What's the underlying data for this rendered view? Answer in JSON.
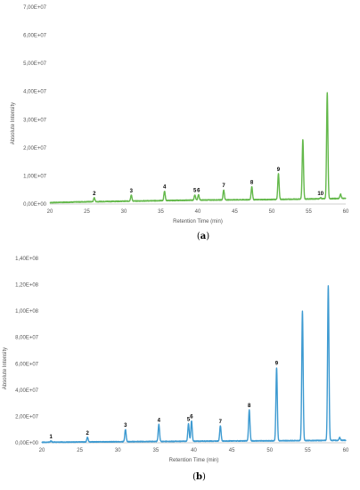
{
  "chart_data": [
    {
      "type": "line",
      "panel_label": "(a)",
      "panel_letter": "a",
      "xlabel": "Retention Time (min)",
      "ylabel": "Absolute Intensity",
      "xlim": [
        20,
        60
      ],
      "ylim": [
        0,
        70000000
      ],
      "x_ticks": [
        20,
        25,
        30,
        35,
        40,
        45,
        50,
        55,
        60
      ],
      "y_ticks": [
        0,
        10000000,
        20000000,
        30000000,
        40000000,
        50000000,
        60000000,
        70000000
      ],
      "y_tick_labels": [
        "0,00E+00",
        "1,00E+07",
        "2,00E+07",
        "3,00E+07",
        "4,00E+07",
        "5,00E+07",
        "6,00E+07",
        "7,00E+07"
      ],
      "baseline": [
        [
          20,
          500000
        ],
        [
          25,
          800000
        ],
        [
          30,
          1000000
        ],
        [
          35,
          1200000
        ],
        [
          40,
          1400000
        ],
        [
          45,
          1500000
        ],
        [
          50,
          1600000
        ],
        [
          55,
          1800000
        ],
        [
          60,
          2000000
        ]
      ],
      "peaks": [
        {
          "x": 26.0,
          "y": 2200000,
          "label": "2"
        },
        {
          "x": 31.0,
          "y": 3200000,
          "label": "3"
        },
        {
          "x": 35.5,
          "y": 4600000,
          "label": "4"
        },
        {
          "x": 39.6,
          "y": 3300000,
          "label": "5"
        },
        {
          "x": 40.1,
          "y": 3300000,
          "label": "6"
        },
        {
          "x": 43.5,
          "y": 5000000,
          "label": "7"
        },
        {
          "x": 47.3,
          "y": 6200000,
          "label": "8"
        },
        {
          "x": 50.9,
          "y": 10800000,
          "label": "9"
        },
        {
          "x": 54.2,
          "y": 23000000,
          "label": ""
        },
        {
          "x": 56.6,
          "y": 2200000,
          "label": "10"
        },
        {
          "x": 57.5,
          "y": 39500000,
          "label": ""
        },
        {
          "x": 59.3,
          "y": 3500000,
          "label": ""
        }
      ],
      "color": "#63b84a"
    },
    {
      "type": "line",
      "panel_label": "(b)",
      "panel_letter": "b",
      "xlabel": "Retention Time (min)",
      "ylabel": "Absolute Intensity",
      "xlim": [
        20,
        60
      ],
      "ylim": [
        0,
        140000000
      ],
      "x_ticks": [
        20,
        25,
        30,
        35,
        40,
        45,
        50,
        55,
        60
      ],
      "y_ticks": [
        0,
        20000000,
        40000000,
        60000000,
        80000000,
        100000000,
        120000000,
        140000000
      ],
      "y_tick_labels": [
        "0,00E+00",
        "2,00E+07",
        "4,00E+07",
        "6,00E+07",
        "8,00E+07",
        "1,00E+08",
        "1,20E+08",
        "1,40E+08"
      ],
      "baseline": [
        [
          20,
          400000
        ],
        [
          25,
          600000
        ],
        [
          30,
          800000
        ],
        [
          35,
          1000000
        ],
        [
          40,
          1200000
        ],
        [
          45,
          1400000
        ],
        [
          50,
          1500000
        ],
        [
          55,
          1700000
        ],
        [
          60,
          1900000
        ]
      ],
      "peaks": [
        {
          "x": 21.2,
          "y": 1300000,
          "label": "1"
        },
        {
          "x": 26.0,
          "y": 4200000,
          "label": "2"
        },
        {
          "x": 31.0,
          "y": 10000000,
          "label": "3"
        },
        {
          "x": 35.4,
          "y": 14000000,
          "label": "4"
        },
        {
          "x": 39.3,
          "y": 14500000,
          "label": "5"
        },
        {
          "x": 39.7,
          "y": 16500000,
          "label": "6"
        },
        {
          "x": 43.5,
          "y": 13000000,
          "label": "7"
        },
        {
          "x": 47.3,
          "y": 25000000,
          "label": "8"
        },
        {
          "x": 50.9,
          "y": 57000000,
          "label": "9"
        },
        {
          "x": 54.3,
          "y": 100000000,
          "label": ""
        },
        {
          "x": 57.7,
          "y": 119000000,
          "label": ""
        },
        {
          "x": 59.2,
          "y": 4000000,
          "label": ""
        }
      ],
      "color": "#3d9ad1"
    }
  ]
}
